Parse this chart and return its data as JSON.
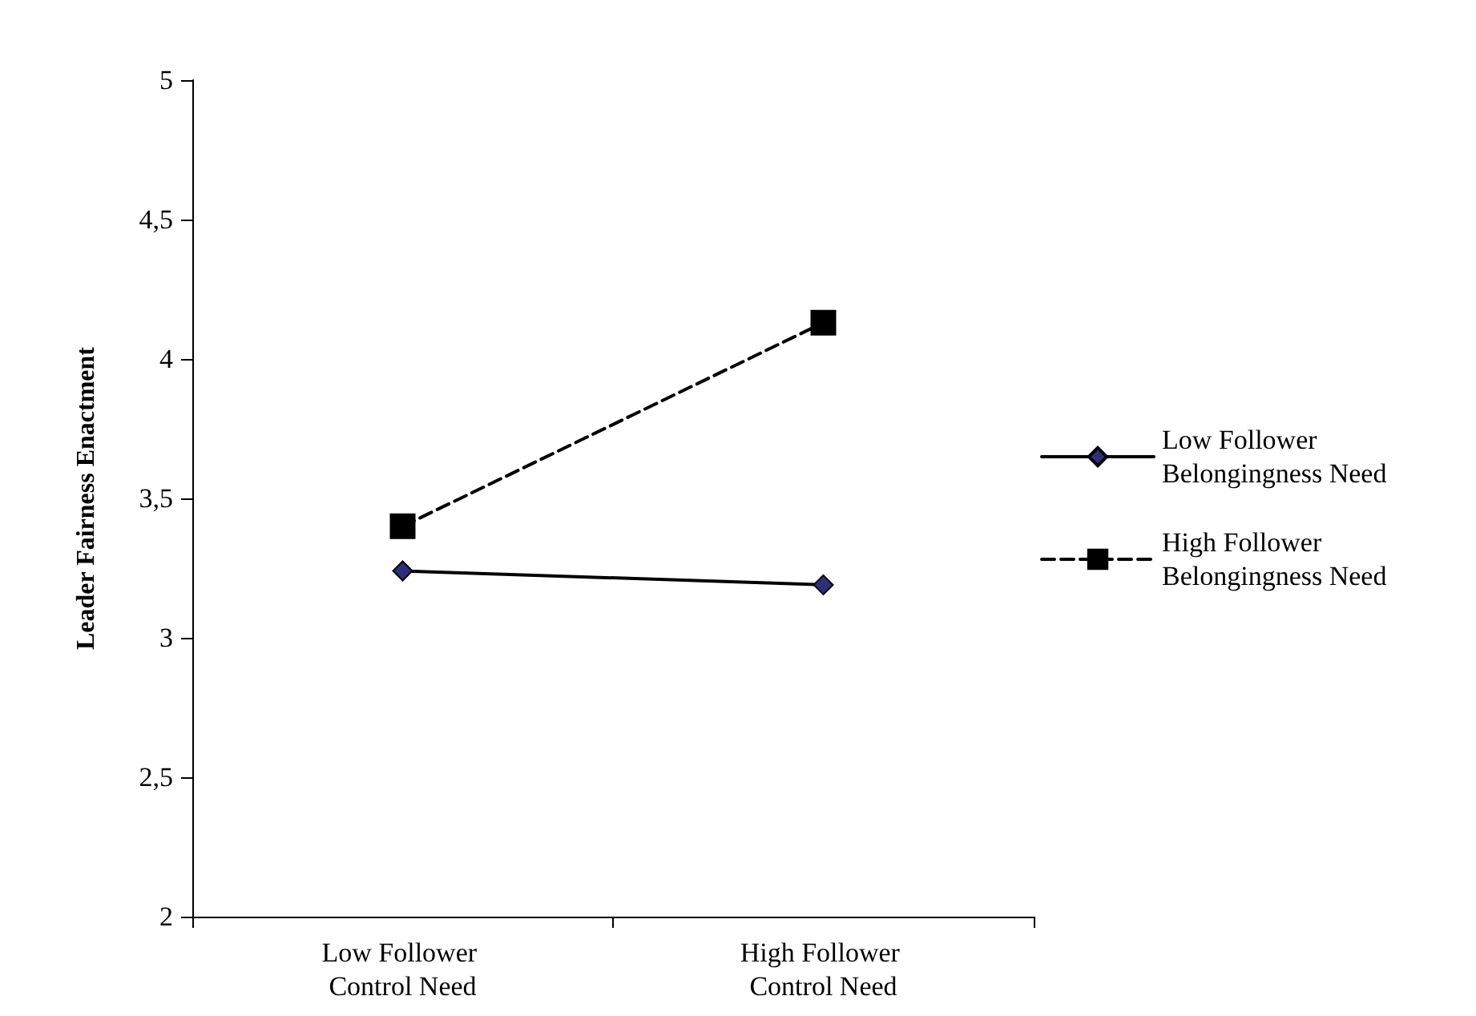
{
  "chart_data": {
    "type": "line",
    "ylabel": "Leader Fairness Enactment",
    "categories": [
      "Low Follower Control Need",
      "High Follower Control Need"
    ],
    "series": [
      {
        "name": "Low Follower Belongingness Need",
        "color": "#2e2e7a",
        "values": [
          3.24,
          3.19
        ],
        "marker": "diamond",
        "line_style": "solid"
      },
      {
        "name": "High Follower Belongingness Need",
        "color": "#000000",
        "values": [
          3.4,
          4.13
        ],
        "marker": "square",
        "line_style": "dashed"
      }
    ],
    "ylim": [
      2,
      5
    ],
    "yticks": [
      2,
      {
        "value": 2.5,
        "label": "2,5"
      },
      3,
      {
        "value": 3.5,
        "label": "3,5"
      },
      4,
      {
        "value": 4.5,
        "label": "4,5"
      },
      5
    ],
    "grid": false,
    "legend": "right"
  }
}
